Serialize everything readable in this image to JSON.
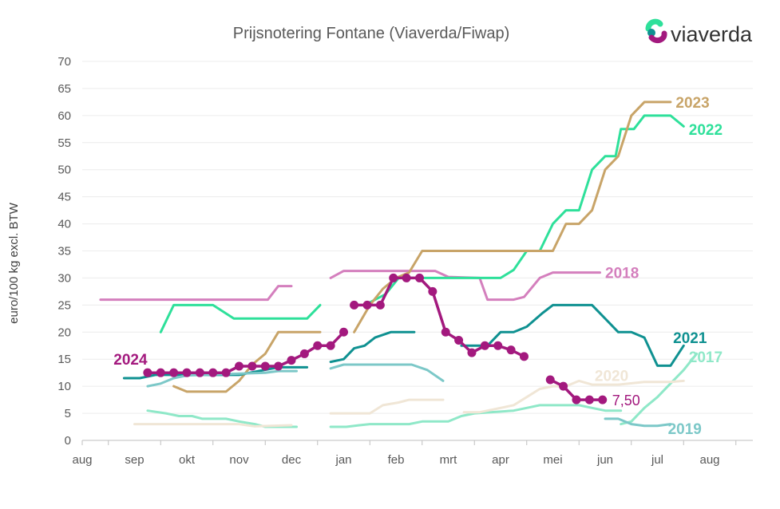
{
  "chart_data": {
    "type": "line",
    "title": "Prijsnotering Fontane (Viaverda/Fiwap)",
    "ylabel": "euro/100 kg excl. BTW",
    "xlabel": "",
    "ylim": [
      0,
      70
    ],
    "yticks": [
      0,
      5,
      10,
      15,
      20,
      25,
      30,
      35,
      40,
      45,
      50,
      55,
      60,
      65,
      70
    ],
    "xlim": [
      0,
      12.5
    ],
    "xticks": [
      {
        "label": "aug",
        "x": 0
      },
      {
        "label": "sep",
        "x": 1
      },
      {
        "label": "okt",
        "x": 2
      },
      {
        "label": "nov",
        "x": 3
      },
      {
        "label": "dec",
        "x": 4
      },
      {
        "label": "jan",
        "x": 5
      },
      {
        "label": "feb",
        "x": 6
      },
      {
        "label": "mrt",
        "x": 7
      },
      {
        "label": "apr",
        "x": 8
      },
      {
        "label": "mei",
        "x": 9
      },
      {
        "label": "jun",
        "x": 10
      },
      {
        "label": "jul",
        "x": 11
      },
      {
        "label": "aug",
        "x": 12
      }
    ],
    "grid": true,
    "annotation": "7,50",
    "series": [
      {
        "name": "2018",
        "color": "#d47fbd",
        "segments": [
          [
            [
              0.35,
              26
            ],
            [
              3.55,
              26
            ],
            [
              3.75,
              28.5
            ],
            [
              4.0,
              28.5
            ]
          ],
          [
            [
              4.75,
              30
            ],
            [
              5.0,
              31.3
            ],
            [
              6.75,
              31.3
            ],
            [
              7.0,
              30.2
            ],
            [
              7.6,
              30
            ],
            [
              7.75,
              26
            ],
            [
              8.25,
              26
            ],
            [
              8.45,
              26.5
            ],
            [
              8.75,
              30
            ],
            [
              9.0,
              31
            ],
            [
              9.9,
              31
            ]
          ]
        ]
      },
      {
        "name": "2022",
        "color": "#2ee09a",
        "segments": [
          [
            [
              1.5,
              20
            ],
            [
              1.75,
              25
            ],
            [
              2.5,
              25
            ],
            [
              2.9,
              22.5
            ],
            [
              4.3,
              22.5
            ],
            [
              4.55,
              25
            ]
          ],
          [
            [
              5.4,
              25
            ],
            [
              5.8,
              27
            ],
            [
              6.05,
              30
            ],
            [
              8.0,
              30
            ],
            [
              8.25,
              31.5
            ],
            [
              8.5,
              35
            ],
            [
              8.75,
              35
            ],
            [
              9.0,
              40
            ],
            [
              9.25,
              42.5
            ],
            [
              9.5,
              42.5
            ],
            [
              9.75,
              50
            ],
            [
              10.0,
              52.5
            ],
            [
              10.2,
              52.5
            ],
            [
              10.3,
              57.5
            ],
            [
              10.55,
              57.5
            ],
            [
              10.75,
              60
            ],
            [
              11.25,
              60
            ],
            [
              11.5,
              58
            ]
          ]
        ]
      },
      {
        "name": "2023",
        "color": "#c8a468",
        "segments": [
          [
            [
              1.75,
              10
            ],
            [
              2.0,
              9
            ],
            [
              2.75,
              9
            ],
            [
              3.0,
              11
            ],
            [
              3.25,
              14
            ],
            [
              3.5,
              16
            ],
            [
              3.75,
              20
            ],
            [
              4.55,
              20
            ]
          ],
          [
            [
              5.2,
              20
            ],
            [
              5.5,
              25
            ],
            [
              5.75,
              28
            ],
            [
              6.0,
              30
            ],
            [
              6.25,
              31
            ],
            [
              6.5,
              35
            ],
            [
              8.75,
              35
            ],
            [
              9.0,
              35
            ],
            [
              9.25,
              40
            ],
            [
              9.5,
              40
            ],
            [
              9.75,
              42.5
            ],
            [
              10.0,
              50
            ],
            [
              10.25,
              52.5
            ],
            [
              10.5,
              60
            ],
            [
              10.75,
              62.5
            ],
            [
              11.25,
              62.5
            ]
          ]
        ]
      },
      {
        "name": "2021",
        "color": "#0f9191",
        "segments": [
          [
            [
              0.8,
              11.5
            ],
            [
              1.1,
              11.5
            ],
            [
              1.4,
              12.1
            ],
            [
              3.0,
              12.1
            ],
            [
              3.75,
              13.5
            ],
            [
              4.3,
              13.5
            ]
          ],
          [
            [
              4.75,
              14.5
            ],
            [
              5.0,
              15
            ],
            [
              5.2,
              17
            ],
            [
              5.4,
              17.5
            ],
            [
              5.6,
              19
            ],
            [
              5.9,
              20
            ],
            [
              6.35,
              20
            ]
          ],
          [
            [
              7.25,
              17.5
            ],
            [
              7.75,
              17.5
            ],
            [
              8.0,
              20
            ],
            [
              8.25,
              20
            ],
            [
              8.5,
              21
            ],
            [
              8.8,
              23.5
            ],
            [
              9.0,
              25
            ],
            [
              9.6,
              25
            ],
            [
              9.75,
              25
            ],
            [
              10.0,
              22.5
            ],
            [
              10.25,
              20
            ],
            [
              10.5,
              20
            ],
            [
              10.75,
              19
            ],
            [
              11.0,
              13.8
            ],
            [
              11.25,
              13.8
            ],
            [
              11.5,
              17.5
            ]
          ]
        ]
      },
      {
        "name": "2017",
        "color": "#8fe8c8",
        "segments": [
          [
            [
              1.25,
              5.5
            ],
            [
              1.6,
              5
            ],
            [
              1.85,
              4.5
            ],
            [
              2.1,
              4.5
            ],
            [
              2.3,
              4
            ],
            [
              2.75,
              4
            ],
            [
              3.0,
              3.5
            ],
            [
              3.3,
              3
            ],
            [
              3.5,
              2.5
            ],
            [
              4.1,
              2.5
            ]
          ],
          [
            [
              4.75,
              2.5
            ],
            [
              5.05,
              2.5
            ],
            [
              5.3,
              2.8
            ],
            [
              5.5,
              3
            ],
            [
              6.25,
              3
            ],
            [
              6.5,
              3.5
            ],
            [
              7.0,
              3.5
            ],
            [
              7.25,
              4.5
            ],
            [
              7.5,
              5
            ],
            [
              8.25,
              5.5
            ],
            [
              8.5,
              6
            ],
            [
              8.75,
              6.5
            ],
            [
              9.5,
              6.5
            ],
            [
              9.75,
              6
            ],
            [
              10.0,
              5.5
            ],
            [
              10.3,
              5.5
            ]
          ],
          [
            [
              10.3,
              3
            ],
            [
              10.5,
              3.5
            ],
            [
              10.75,
              6
            ],
            [
              11.0,
              8
            ],
            [
              11.2,
              10
            ],
            [
              11.5,
              13
            ],
            [
              11.75,
              16
            ]
          ]
        ]
      },
      {
        "name": "2019",
        "color": "#7cc8c8",
        "segments": [
          [
            [
              1.25,
              10
            ],
            [
              1.5,
              10.5
            ],
            [
              1.75,
              11.5
            ],
            [
              2.0,
              12
            ],
            [
              3.5,
              12.5
            ],
            [
              3.75,
              12.8
            ],
            [
              4.1,
              12.8
            ]
          ],
          [
            [
              4.75,
              13.3
            ],
            [
              5.0,
              14
            ],
            [
              6.3,
              14
            ],
            [
              6.6,
              13
            ],
            [
              6.9,
              11
            ]
          ],
          [
            [
              10.0,
              4
            ],
            [
              10.25,
              4
            ],
            [
              10.5,
              3
            ],
            [
              10.75,
              2.7
            ],
            [
              11.0,
              2.7
            ],
            [
              11.25,
              3
            ]
          ]
        ]
      },
      {
        "name": "2020",
        "color": "#f0e6d6",
        "segments": [
          [
            [
              1.0,
              3
            ],
            [
              1.5,
              3
            ],
            [
              3.0,
              3
            ],
            [
              3.3,
              2.6
            ],
            [
              4.0,
              2.8
            ]
          ],
          [
            [
              4.75,
              5
            ],
            [
              5.5,
              5
            ],
            [
              5.75,
              6.5
            ],
            [
              6.05,
              7
            ],
            [
              6.25,
              7.5
            ],
            [
              6.5,
              7.5
            ],
            [
              6.9,
              7.5
            ]
          ],
          [
            [
              7.3,
              5.2
            ],
            [
              7.6,
              5.2
            ],
            [
              7.75,
              5.5
            ],
            [
              8.0,
              6
            ],
            [
              8.25,
              6.5
            ],
            [
              8.5,
              8
            ],
            [
              8.75,
              9.5
            ],
            [
              9.0,
              10
            ],
            [
              9.25,
              10
            ],
            [
              9.5,
              11
            ],
            [
              9.75,
              10.3
            ],
            [
              10.25,
              10.3
            ],
            [
              10.75,
              10.8
            ],
            [
              11.25,
              10.8
            ],
            [
              11.5,
              11
            ]
          ]
        ]
      },
      {
        "name": "2024",
        "color": "#a3197e",
        "markers": true,
        "segments": [
          [
            [
              1.25,
              12.5
            ],
            [
              1.5,
              12.5
            ],
            [
              1.75,
              12.5
            ],
            [
              2.0,
              12.5
            ],
            [
              2.25,
              12.5
            ],
            [
              2.5,
              12.5
            ],
            [
              2.75,
              12.5
            ],
            [
              3.0,
              13.7
            ],
            [
              3.25,
              13.7
            ],
            [
              3.5,
              13.7
            ],
            [
              3.75,
              13.7
            ],
            [
              4.0,
              14.8
            ],
            [
              4.25,
              16
            ],
            [
              4.5,
              17.5
            ],
            [
              4.75,
              17.5
            ],
            [
              5.0,
              20
            ]
          ],
          [
            [
              5.2,
              25
            ],
            [
              5.45,
              25
            ],
            [
              5.7,
              25
            ],
            [
              5.95,
              30
            ],
            [
              6.2,
              30
            ],
            [
              6.45,
              30
            ],
            [
              6.7,
              27.5
            ],
            [
              6.95,
              20
            ],
            [
              7.2,
              18.5
            ],
            [
              7.45,
              16.2
            ],
            [
              7.7,
              17.5
            ],
            [
              7.95,
              17.5
            ],
            [
              8.2,
              16.7
            ],
            [
              8.45,
              15.5
            ]
          ],
          [
            [
              8.95,
              11.2
            ],
            [
              9.2,
              10
            ],
            [
              9.45,
              7.5
            ],
            [
              9.7,
              7.5
            ],
            [
              9.95,
              7.5
            ]
          ]
        ]
      }
    ],
    "series_labels": [
      {
        "name": "2023",
        "x": 11.35,
        "y": 62.5,
        "color": "#c8a468"
      },
      {
        "name": "2022",
        "x": 11.6,
        "y": 57.5,
        "color": "#2ee09a"
      },
      {
        "name": "2018",
        "x": 10.0,
        "y": 31,
        "color": "#d47fbd"
      },
      {
        "name": "2021",
        "x": 11.3,
        "y": 19,
        "color": "#0f9191"
      },
      {
        "name": "2017",
        "x": 11.6,
        "y": 15.5,
        "color": "#8fe8c8"
      },
      {
        "name": "2024",
        "x": 0.6,
        "y": 15,
        "color": "#a3197e"
      },
      {
        "name": "2020",
        "x": 9.8,
        "y": 12,
        "color": "#f0e6d6"
      },
      {
        "name": "2019",
        "x": 11.2,
        "y": 2.2,
        "color": "#7cc8c8"
      }
    ],
    "annotation_pos": {
      "x": 9.95,
      "y": 7.5,
      "color": "#a3197e"
    }
  },
  "logo": {
    "text": "viaverda",
    "colors": [
      "#2ee09a",
      "#a3197e",
      "#0f9191"
    ]
  }
}
